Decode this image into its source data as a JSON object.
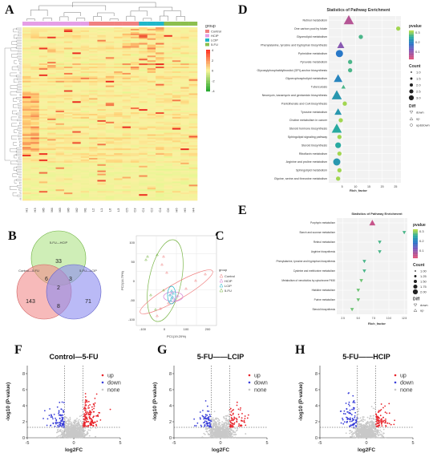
{
  "panel_labels": {
    "A": "A",
    "B": "B",
    "C": "C",
    "D": "D",
    "E": "E",
    "F": "F",
    "G": "G",
    "H": "H"
  },
  "heatmap": {
    "legend_title": "group",
    "groups": [
      {
        "name": "Control",
        "color": "#f08080"
      },
      {
        "name": "HCIP",
        "color": "#e59ee6"
      },
      {
        "name": "LCIP",
        "color": "#1fb7c9"
      },
      {
        "name": "5-FU",
        "color": "#8cbf4e"
      }
    ],
    "scale_ticks": [
      "4",
      "2",
      "0",
      "-2",
      "-4"
    ],
    "columns": [
      "H1",
      "H3",
      "M5",
      "M4",
      "M3",
      "M6",
      "M2",
      "M1",
      "L2",
      "L1",
      "L6",
      "L3",
      "C5",
      "C3",
      "C1",
      "C2",
      "C4",
      "C6",
      "H6",
      "H5",
      "H4"
    ]
  },
  "venn": {
    "sets": [
      {
        "label": "5-FU—HCIP",
        "color": "#a8e07c"
      },
      {
        "label": "Control—5-FU",
        "color": "#f28c8c"
      },
      {
        "label": "5-FU—LCIP",
        "color": "#8c8cf0"
      }
    ],
    "regions": [
      {
        "id": "top_only",
        "value": "33"
      },
      {
        "id": "left_only",
        "value": "143"
      },
      {
        "id": "right_only",
        "value": "71"
      },
      {
        "id": "top_left",
        "value": "6"
      },
      {
        "id": "top_right",
        "value": "3"
      },
      {
        "id": "left_right",
        "value": "8"
      },
      {
        "id": "all",
        "value": "2"
      }
    ]
  },
  "pca": {
    "xlabel": "PC1(19.20%)",
    "ylabel": "PC2(14.79%)",
    "legend_title": "group",
    "groups": [
      {
        "name": "Control",
        "color": "#f08080"
      },
      {
        "name": "HCIP",
        "color": "#d67fd6"
      },
      {
        "name": "LCIP",
        "color": "#1fb7c9"
      },
      {
        "name": "5-FU",
        "color": "#7ab648"
      }
    ],
    "xticks": [
      "-100",
      "0",
      "100",
      "200"
    ],
    "yticks": [
      "100",
      "50",
      "0",
      "-50",
      "-100"
    ]
  },
  "enrichment_d": {
    "title": "Statistics of Pathway Enrichment",
    "xlabel": "Rich_factor",
    "xticks": [
      "5",
      "10",
      "15",
      "20",
      "25"
    ],
    "xlim": [
      0,
      27
    ],
    "legend_pvalue_title": "pvalue",
    "legend_pvalue_ticks": [
      "0.3",
      "0.2",
      "0.1"
    ],
    "legend_count_title": "Count",
    "legend_count_values": [
      "1.0",
      "1.5",
      "2.0",
      "2.5",
      "3.0"
    ],
    "legend_diff_title": "Diff",
    "legend_diff_values": [
      "down",
      "up",
      "up&down"
    ],
    "pathways": [
      {
        "name": "Retinol metabolism",
        "x": 7.5,
        "p": 0.05,
        "count": 3,
        "diff": "up"
      },
      {
        "name": "One carbon pool by folate",
        "x": 26,
        "p": 0.35,
        "count": 1,
        "diff": "up&down"
      },
      {
        "name": "Glycerolipid metabolism",
        "x": 12,
        "p": 0.3,
        "count": 1,
        "diff": "up&down"
      },
      {
        "name": "Phenylalanine, tyrosine and tryptophan biosynthesis",
        "x": 4.5,
        "p": 0.1,
        "count": 2,
        "diff": "up"
      },
      {
        "name": "Pyrimidine metabolism",
        "x": 4,
        "p": 0.2,
        "count": 2,
        "diff": "up&down"
      },
      {
        "name": "Pyruvate metabolism",
        "x": 8,
        "p": 0.3,
        "count": 1,
        "diff": "up&down"
      },
      {
        "name": "Glycosylphosphatidylinositol (GPI)-anchor biosynthesis",
        "x": 8,
        "p": 0.3,
        "count": 1,
        "diff": "up&down"
      },
      {
        "name": "Glycerophospholipid metabolism",
        "x": 3.5,
        "p": 0.22,
        "count": 2.5,
        "diff": "up"
      },
      {
        "name": "Tuberculosis",
        "x": 5.5,
        "p": 0.3,
        "count": 1,
        "diff": "up"
      },
      {
        "name": "Neomycin, kanamycin and gentamicin biosynthesis",
        "x": 3,
        "p": 0.25,
        "count": 3,
        "diff": "up"
      },
      {
        "name": "Pantothenate and CoA biosynthesis",
        "x": 6,
        "p": 0.35,
        "count": 1,
        "diff": "up&down"
      },
      {
        "name": "Tyrosine metabolism",
        "x": 3.5,
        "p": 0.25,
        "count": 2,
        "diff": "up"
      },
      {
        "name": "Choline metabolism in cancer",
        "x": 4.5,
        "p": 0.35,
        "count": 1,
        "diff": "up&down"
      },
      {
        "name": "Steroid hormone biosynthesis",
        "x": 3,
        "p": 0.28,
        "count": 3,
        "diff": "up"
      },
      {
        "name": "Sphingolipid signaling pathway",
        "x": 4,
        "p": 0.35,
        "count": 1,
        "diff": "up&down"
      },
      {
        "name": "Steroid biosynthesis",
        "x": 3.5,
        "p": 0.28,
        "count": 1.5,
        "diff": "up&down"
      },
      {
        "name": "Riboflavin metabolism",
        "x": 4,
        "p": 0.35,
        "count": 1,
        "diff": "up&down"
      },
      {
        "name": "Arginine and proline metabolism",
        "x": 3,
        "p": 0.25,
        "count": 2,
        "diff": "up&down"
      },
      {
        "name": "Sphingolipid metabolism",
        "x": 4,
        "p": 0.35,
        "count": 1,
        "diff": "up&down"
      },
      {
        "name": "Glycine, serine and threonine metabolism",
        "x": 3.5,
        "p": 0.35,
        "count": 1,
        "diff": "up&down"
      }
    ]
  },
  "enrichment_e": {
    "title": "Statistics of Pathway Enrichment",
    "xlabel": "Rich_factor",
    "xticks": [
      "2.5",
      "5.0",
      "7.5",
      "10.0",
      "12.5"
    ],
    "xlim": [
      1.5,
      13
    ],
    "legend_pvalue_title": "pvalue",
    "legend_pvalue_ticks": [
      "0.3",
      "0.2",
      "0.1"
    ],
    "legend_count_title": "Count",
    "legend_count_values": [
      "1.00",
      "1.25",
      "1.50",
      "1.75",
      "2.00"
    ],
    "legend_diff_title": "Diff",
    "legend_diff_values": [
      "down",
      "up"
    ],
    "pathways": [
      {
        "name": "Porphyrin metabolism",
        "x": 7.3,
        "p": 0.03,
        "count": 2,
        "diff": "up"
      },
      {
        "name": "Starch and sucrose metabolism",
        "x": 12.5,
        "p": 0.3,
        "count": 1,
        "diff": "down"
      },
      {
        "name": "Retinol metabolism",
        "x": 8.5,
        "p": 0.3,
        "count": 1,
        "diff": "down"
      },
      {
        "name": "Arginine biosynthesis",
        "x": 8.5,
        "p": 0.3,
        "count": 1,
        "diff": "down"
      },
      {
        "name": "Phenylalanine, tyrosine and tryptophan biosynthesis",
        "x": 6,
        "p": 0.3,
        "count": 1,
        "diff": "down"
      },
      {
        "name": "Cysteine and methionine metabolism",
        "x": 6,
        "p": 0.3,
        "count": 1,
        "diff": "down"
      },
      {
        "name": "Metabolism of xenobiotics by cytochrome P450",
        "x": 5.5,
        "p": 0.32,
        "count": 1,
        "diff": "down"
      },
      {
        "name": "Histidine metabolism",
        "x": 5,
        "p": 0.32,
        "count": 1,
        "diff": "down"
      },
      {
        "name": "Purine metabolism",
        "x": 5,
        "p": 0.32,
        "count": 1,
        "diff": "down"
      },
      {
        "name": "Steroid biosynthesis",
        "x": 4,
        "p": 0.32,
        "count": 1,
        "diff": "down"
      }
    ]
  },
  "volcanos": [
    {
      "id": "F",
      "title": "Control—5-FU",
      "xlabel": "log2FC",
      "ylabel": "-log10 (P-value)",
      "legend": [
        "up",
        "down",
        "none"
      ],
      "xticks": [
        "-5",
        "0",
        "5"
      ],
      "yticks": [
        "0",
        "2",
        "4",
        "6",
        "8"
      ],
      "ylim": [
        0,
        9
      ]
    },
    {
      "id": "G",
      "title": "5-FU——LCIP",
      "xlabel": "log2FC",
      "ylabel": "-log10 (P-value)",
      "legend": [
        "up",
        "down",
        "none"
      ],
      "xticks": [
        "-5",
        "0",
        "5"
      ],
      "yticks": [
        "0",
        "2",
        "4",
        "6",
        "8"
      ],
      "ylim": [
        0,
        9
      ]
    },
    {
      "id": "H",
      "title": "5-FU——HCIP",
      "xlabel": "log2FC",
      "ylabel": "-log10 (P-value)",
      "legend": [
        "up",
        "down",
        "none"
      ],
      "xticks": [
        "-5",
        "0",
        "5"
      ],
      "yticks": [
        "0",
        "2",
        "4",
        "6",
        "8"
      ],
      "ylim": [
        0,
        9
      ]
    }
  ],
  "colors": {
    "up": "#e8242b",
    "down": "#3a3fd9",
    "none": "#c8c8c8",
    "diff_up": "#c0504d"
  }
}
